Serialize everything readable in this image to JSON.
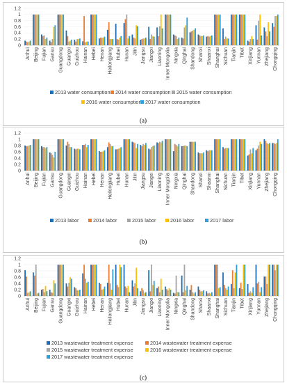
{
  "colors": [
    "#1f6eb5",
    "#ed7d31",
    "#a5a5a5",
    "#ffc000",
    "#2e9fd8"
  ],
  "provinces": [
    "Anhui",
    "Beijing",
    "Fujian",
    "Gansu",
    "Guangdong",
    "Guangxi",
    "Guizhou",
    "Hainan",
    "Hebei",
    "Henan",
    "Heilongjiang",
    "Hubei",
    "Hunan",
    "Jilin",
    "Jiangsu",
    "Jiangxi",
    "Liaoning",
    "Inner Mongolia",
    "Ningxia",
    "Qinghai",
    "Shandong",
    "Shanxi",
    "Shaanxi",
    "Shanghai",
    "Sichuan",
    "Tianjin",
    "Tibet",
    "Xinjiang",
    "Yunnan",
    "Zhejiang",
    "Chongqing"
  ],
  "chart_data": [
    {
      "type": "bar",
      "caption": "(a)",
      "ylim": [
        0,
        1.2
      ],
      "yticks": [
        "0",
        "0.2",
        "0.4",
        "0.6",
        "0.8",
        "1",
        "1.2"
      ],
      "legend": [
        "2013 water consumption",
        "2014 water consumption",
        "2015 water consumption",
        "2016 water consumption",
        "2017 water consumption"
      ],
      "series": [
        {
          "name": "2013 water consumption",
          "values": [
            0.15,
            1.0,
            0.35,
            0.15,
            1.0,
            0.48,
            0.18,
            0.13,
            1.0,
            0.22,
            0.5,
            0.7,
            0.72,
            0.35,
            0.18,
            0.6,
            0.58,
            1.0,
            0.35,
            0.25,
            0.42,
            0.35,
            0.28,
            1.0,
            0.55,
            1.0,
            1.0,
            0.15,
            0.65,
            0.58,
            0.72
          ]
        },
        {
          "name": "2014 water consumption",
          "values": [
            0.12,
            1.0,
            0.3,
            0.1,
            1.0,
            0.3,
            0.12,
            0.95,
            1.0,
            0.25,
            0.75,
            0.2,
            0.85,
            0.25,
            0.2,
            0.2,
            0.3,
            1.0,
            0.32,
            0.22,
            0.45,
            0.32,
            0.3,
            1.0,
            0.2,
            1.0,
            1.0,
            0.12,
            0.18,
            0.45,
            0.6
          ]
        },
        {
          "name": "2015 water consumption",
          "values": [
            0.1,
            1.0,
            0.32,
            0.2,
            1.0,
            0.12,
            0.2,
            0.1,
            1.0,
            0.25,
            0.2,
            0.18,
            1.0,
            0.22,
            0.22,
            0.35,
            0.62,
            1.0,
            0.3,
            0.58,
            0.48,
            0.3,
            0.28,
            1.0,
            0.28,
            1.0,
            1.0,
            0.2,
            0.8,
            0.3,
            0.95
          ]
        },
        {
          "name": "2016 water consumption",
          "values": [
            0.12,
            1.0,
            0.2,
            0.6,
            1.0,
            0.15,
            0.2,
            0.12,
            1.0,
            0.25,
            0.2,
            0.25,
            0.22,
            0.65,
            0.22,
            0.3,
            1.0,
            1.0,
            0.2,
            0.65,
            0.5,
            0.3,
            0.3,
            1.0,
            0.22,
            1.0,
            1.0,
            0.3,
            1.0,
            0.75,
            0.95
          ]
        },
        {
          "name": "2017 water consumption",
          "values": [
            0.15,
            1.0,
            0.25,
            0.65,
            1.0,
            0.18,
            0.22,
            0.12,
            1.0,
            0.28,
            0.2,
            0.3,
            0.3,
            0.62,
            0.25,
            0.28,
            0.55,
            1.0,
            0.25,
            0.9,
            0.55,
            0.32,
            0.32,
            1.0,
            0.22,
            1.0,
            1.0,
            0.2,
            0.32,
            0.45,
            1.0
          ]
        }
      ]
    },
    {
      "type": "bar",
      "caption": "(b)",
      "ylim": [
        0,
        1.2
      ],
      "yticks": [
        "0",
        "0.2",
        "0.4",
        "0.6",
        "0.8",
        "1",
        "1.2"
      ],
      "legend": [
        "2013 labor",
        "2014 labor",
        "2015 labor",
        "2016 labor",
        "2017 labor"
      ],
      "series": [
        {
          "name": "2013 labor",
          "values": [
            0.8,
            1.0,
            0.78,
            0.58,
            1.0,
            0.8,
            0.7,
            0.82,
            1.0,
            0.62,
            0.75,
            0.68,
            1.0,
            0.92,
            0.82,
            0.7,
            0.9,
            1.0,
            0.62,
            0.78,
            0.92,
            0.58,
            0.65,
            1.0,
            0.75,
            1.0,
            1.0,
            0.48,
            0.65,
            1.0,
            0.88
          ]
        },
        {
          "name": "2014 labor",
          "values": [
            0.78,
            1.0,
            0.75,
            0.55,
            1.0,
            0.92,
            0.68,
            0.82,
            1.0,
            0.6,
            0.9,
            0.68,
            1.0,
            0.9,
            0.78,
            0.68,
            0.88,
            1.0,
            0.85,
            0.78,
            0.92,
            0.55,
            0.62,
            1.0,
            0.7,
            1.0,
            1.0,
            0.52,
            0.7,
            0.95,
            0.88
          ]
        },
        {
          "name": "2015 labor",
          "values": [
            0.78,
            1.0,
            0.75,
            0.5,
            1.0,
            0.85,
            0.7,
            0.85,
            1.0,
            0.6,
            0.85,
            0.7,
            1.0,
            0.88,
            0.85,
            0.75,
            0.92,
            1.0,
            0.82,
            0.8,
            0.92,
            0.55,
            0.65,
            1.0,
            0.72,
            1.0,
            1.0,
            0.68,
            0.8,
            0.88,
            0.85
          ]
        },
        {
          "name": "2016 labor",
          "values": [
            0.8,
            1.0,
            0.72,
            0.42,
            1.0,
            0.75,
            0.7,
            0.75,
            1.0,
            0.62,
            0.78,
            0.72,
            1.0,
            0.72,
            0.82,
            0.78,
            0.9,
            1.0,
            0.78,
            0.8,
            0.92,
            0.55,
            0.65,
            1.0,
            0.72,
            1.0,
            1.0,
            0.55,
            0.92,
            0.85,
            0.88
          ]
        },
        {
          "name": "2017 labor",
          "values": [
            0.82,
            1.0,
            0.75,
            0.6,
            1.0,
            0.75,
            0.68,
            0.82,
            1.0,
            0.65,
            0.78,
            0.75,
            1.0,
            0.85,
            0.88,
            0.8,
            0.95,
            1.0,
            0.85,
            0.78,
            0.92,
            0.58,
            0.65,
            1.0,
            0.72,
            1.0,
            1.0,
            0.72,
            0.85,
            0.88,
            1.0
          ]
        }
      ]
    },
    {
      "type": "bar",
      "caption": "(c)",
      "ylim": [
        0,
        1.2
      ],
      "yticks": [
        "0",
        "0.2",
        "0.4",
        "0.6",
        "0.8",
        "1",
        "1.2"
      ],
      "legend": [
        "2013 wastewater treatment expense",
        "2014 wastewater treatment expense",
        "2015 wastewater treatment expense",
        "2016 wastewater treatment expense",
        "2017 wastewater treatment expense"
      ],
      "series": [
        {
          "name": "2013 wastewater treatment expense",
          "values": [
            0.82,
            0.75,
            0.2,
            0.2,
            1.0,
            0.4,
            0.28,
            0.72,
            1.0,
            0.42,
            0.42,
            1.0,
            1.0,
            0.5,
            0.15,
            0.82,
            0.25,
            0.3,
            0.1,
            0.65,
            0.2,
            0.3,
            0.15,
            1.0,
            0.75,
            0.38,
            0.25,
            0.38,
            1.0,
            0.62,
            1.0
          ]
        },
        {
          "name": "2014 wastewater treatment expense",
          "values": [
            0.62,
            0.65,
            0.22,
            0.12,
            1.0,
            0.3,
            0.25,
            1.0,
            1.0,
            0.38,
            1.0,
            0.35,
            0.3,
            0.3,
            0.25,
            0.15,
            0.3,
            0.22,
            0.08,
            0.12,
            0.35,
            0.2,
            0.08,
            1.0,
            0.35,
            0.82,
            0.42,
            0.1,
            0.4,
            0.62,
            1.0
          ]
        },
        {
          "name": "2015 wastewater treatment expense",
          "values": [
            0.1,
            1.0,
            0.12,
            0.1,
            1.0,
            0.42,
            0.18,
            0.55,
            1.0,
            0.2,
            0.4,
            0.28,
            0.25,
            0.4,
            0.18,
            1.0,
            0.12,
            0.18,
            0.65,
            1.0,
            0.12,
            0.15,
            0.1,
            1.0,
            0.25,
            0.25,
            0.22,
            0.15,
            0.45,
            0.38,
            0.82
          ]
        },
        {
          "name": "2016 wastewater treatment expense",
          "values": [
            0.12,
            0.08,
            0.32,
            0.5,
            1.0,
            0.6,
            0.18,
            0.42,
            1.0,
            0.22,
            0.2,
            1.0,
            0.32,
            0.9,
            0.1,
            0.35,
            0.55,
            0.25,
            0.12,
            0.18,
            0.08,
            0.15,
            0.08,
            0.25,
            0.2,
            0.75,
            1.0,
            0.1,
            0.12,
            1.0,
            1.0
          ]
        },
        {
          "name": "2017 wastewater treatment expense",
          "values": [
            0.15,
            0.1,
            0.15,
            0.4,
            1.0,
            0.55,
            0.2,
            0.45,
            1.0,
            0.3,
            0.85,
            0.92,
            0.12,
            0.25,
            0.12,
            0.48,
            0.2,
            0.2,
            0.12,
            0.32,
            0.12,
            0.18,
            0.12,
            0.28,
            0.3,
            1.0,
            1.0,
            0.28,
            0.28,
            1.0,
            1.0
          ]
        }
      ]
    }
  ]
}
